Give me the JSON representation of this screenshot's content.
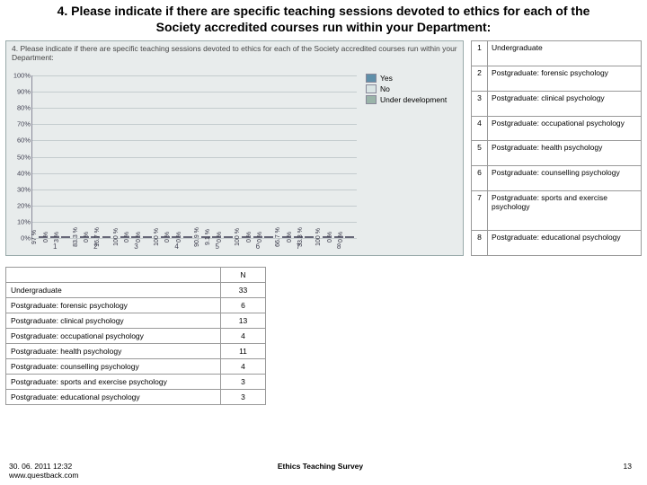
{
  "title": "4. Please indicate if there are specific teaching sessions devoted to ethics for each of the Society accredited courses run within your Department:",
  "chart": {
    "innerTitle": "4. Please indicate if there are specific teaching sessions devoted to ethics for each of the Society accredited courses run within your Department:",
    "background": "#e8ecec",
    "ylim": [
      0,
      100
    ],
    "ytick_step": 10,
    "categories": [
      "1",
      "2",
      "3",
      "4",
      "5",
      "6",
      "7",
      "8"
    ],
    "series": [
      {
        "name": "Yes",
        "color": "#5f8fa9"
      },
      {
        "name": "No",
        "color": "#d9e4e4"
      },
      {
        "name": "Under development",
        "color": "#9ab4a9"
      }
    ],
    "values": {
      "yes": [
        97.0,
        83.3,
        100.0,
        100.0,
        90.9,
        100.0,
        66.7,
        100.0
      ],
      "no": [
        0.0,
        0.0,
        0.0,
        0.0,
        9.1,
        0.0,
        0.0,
        0.0
      ],
      "under": [
        3.0,
        16.7,
        0.0,
        0.0,
        0.0,
        0.0,
        33.3,
        0.0
      ]
    }
  },
  "legendRows": [
    {
      "n": "1",
      "label": "Undergraduate"
    },
    {
      "n": "2",
      "label": "Postgraduate: forensic psychology"
    },
    {
      "n": "3",
      "label": "Postgraduate: clinical psychology"
    },
    {
      "n": "4",
      "label": "Postgraduate: occupational psychology"
    },
    {
      "n": "5",
      "label": "Postgraduate: health psychology"
    },
    {
      "n": "6",
      "label": "Postgraduate: counselling psychology"
    },
    {
      "n": "7",
      "label": "Postgraduate: sports and exercise psychology"
    },
    {
      "n": "8",
      "label": "Postgraduate: educational psychology"
    }
  ],
  "nTable": {
    "header": "N",
    "rows": [
      {
        "label": "Undergraduate",
        "n": "33"
      },
      {
        "label": "Postgraduate: forensic psychology",
        "n": "6"
      },
      {
        "label": "Postgraduate: clinical psychology",
        "n": "13"
      },
      {
        "label": "Postgraduate: occupational psychology",
        "n": "4"
      },
      {
        "label": "Postgraduate:  health psychology",
        "n": "11"
      },
      {
        "label": "Postgraduate: counselling psychology",
        "n": "4"
      },
      {
        "label": "Postgraduate: sports and exercise psychology",
        "n": "3"
      },
      {
        "label": "Postgraduate: educational psychology",
        "n": "3"
      }
    ]
  },
  "footer": {
    "date": "30. 06. 2011 12:32",
    "url": "www.questback.com",
    "center": "Ethics Teaching Survey",
    "page": "13"
  }
}
